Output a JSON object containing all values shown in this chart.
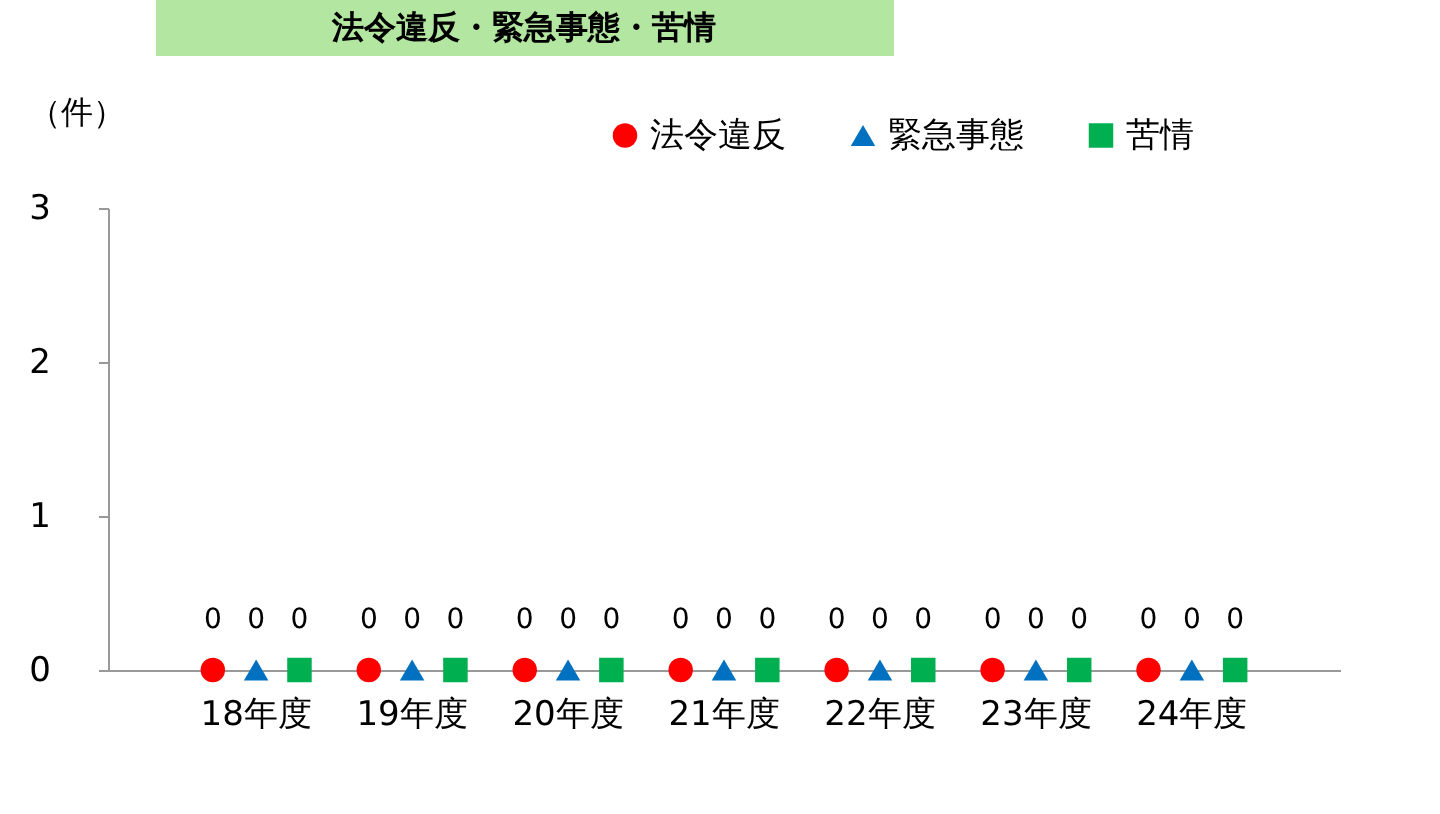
{
  "chart_data": {
    "type": "scatter",
    "title": "法令違反・緊急事態・苦情",
    "ylabel": "（件）",
    "categories": [
      "18年度",
      "19年度",
      "20年度",
      "21年度",
      "22年度",
      "23年度",
      "24年度"
    ],
    "series": [
      {
        "name": "法令違反",
        "color": "#ff0000",
        "marker": "circle",
        "values": [
          0,
          0,
          0,
          0,
          0,
          0,
          0
        ]
      },
      {
        "name": "緊急事態",
        "color": "#0070c0",
        "marker": "triangle",
        "values": [
          0,
          0,
          0,
          0,
          0,
          0,
          0
        ]
      },
      {
        "name": "苦情",
        "color": "#00b050",
        "marker": "square",
        "values": [
          0,
          0,
          0,
          0,
          0,
          0,
          0
        ]
      }
    ],
    "ylim": [
      0,
      3
    ],
    "yticks": [
      0,
      1,
      2,
      3
    ],
    "legend": "top right",
    "data_labels": true
  }
}
